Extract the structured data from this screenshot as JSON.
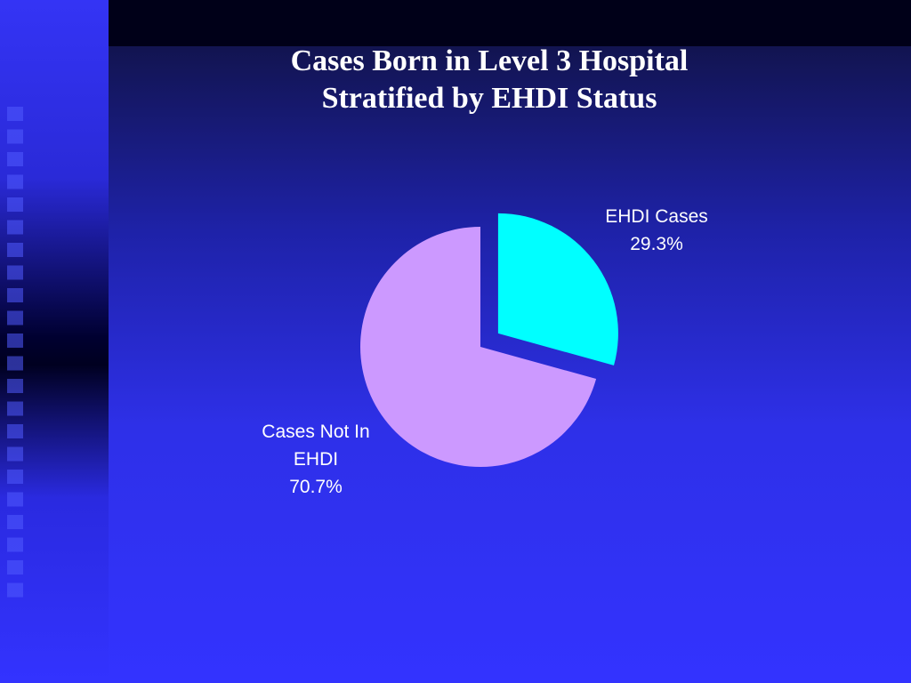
{
  "chart_data": {
    "type": "pie",
    "title": [
      "Cases Born in Level 3 Hospital",
      "Stratified by EHDI Status"
    ],
    "categories": [
      "EHDI Cases",
      "Cases Not In EHDI"
    ],
    "values": [
      29.3,
      70.7
    ],
    "value_labels": [
      "29.3%",
      "70.7%"
    ],
    "colors": [
      "#00ffff",
      "#cc99ff"
    ],
    "exploded": [
      true,
      false
    ]
  }
}
